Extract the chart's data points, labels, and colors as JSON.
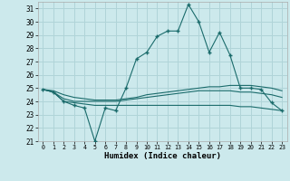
{
  "xlabel": "Humidex (Indice chaleur)",
  "bg_color": "#cce9ec",
  "grid_color": "#b0d4d8",
  "line_color": "#1a6b6b",
  "x": [
    0,
    1,
    2,
    3,
    4,
    5,
    6,
    7,
    8,
    9,
    10,
    11,
    12,
    13,
    14,
    15,
    16,
    17,
    18,
    19,
    20,
    21,
    22,
    23
  ],
  "series_main": [
    24.9,
    24.7,
    24.0,
    23.7,
    23.5,
    21.0,
    23.5,
    23.3,
    25.0,
    27.2,
    27.7,
    28.9,
    29.3,
    29.3,
    31.3,
    30.0,
    27.7,
    29.2,
    27.5,
    25.0,
    25.0,
    24.9,
    23.9,
    23.3
  ],
  "series_avg1": [
    24.9,
    24.8,
    24.5,
    24.3,
    24.2,
    24.1,
    24.1,
    24.1,
    24.2,
    24.3,
    24.5,
    24.6,
    24.7,
    24.8,
    24.9,
    25.0,
    25.1,
    25.1,
    25.2,
    25.2,
    25.2,
    25.1,
    25.0,
    24.8
  ],
  "series_avg2": [
    24.9,
    24.7,
    24.2,
    24.0,
    24.0,
    24.0,
    24.0,
    24.0,
    24.1,
    24.2,
    24.3,
    24.4,
    24.5,
    24.6,
    24.7,
    24.8,
    24.8,
    24.8,
    24.8,
    24.7,
    24.7,
    24.6,
    24.5,
    24.3
  ],
  "series_avg3": [
    24.9,
    24.7,
    24.0,
    23.9,
    23.8,
    23.7,
    23.7,
    23.7,
    23.7,
    23.7,
    23.7,
    23.7,
    23.7,
    23.7,
    23.7,
    23.7,
    23.7,
    23.7,
    23.7,
    23.6,
    23.6,
    23.5,
    23.4,
    23.3
  ],
  "ylim": [
    21,
    31.5
  ],
  "xlim": [
    -0.5,
    23.5
  ],
  "yticks": [
    21,
    22,
    23,
    24,
    25,
    26,
    27,
    28,
    29,
    30,
    31
  ],
  "xticks": [
    0,
    1,
    2,
    3,
    4,
    5,
    6,
    7,
    8,
    9,
    10,
    11,
    12,
    13,
    14,
    15,
    16,
    17,
    18,
    19,
    20,
    21,
    22,
    23
  ]
}
